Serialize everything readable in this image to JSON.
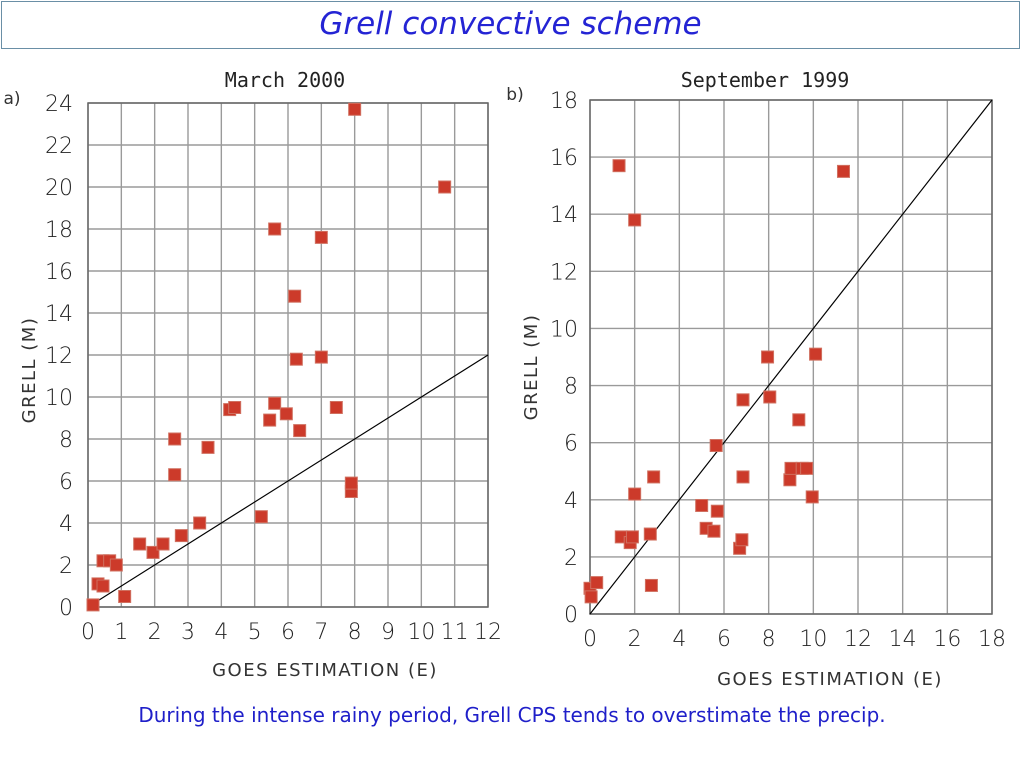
{
  "header": {
    "title": "Grell convective scheme"
  },
  "caption": "During the intense rainy period, Grell CPS tends to overstimate the precip.",
  "chart_data": [
    {
      "type": "scatter",
      "panel_label": "a)",
      "title": "March 2000",
      "xlabel": "GOES ESTIMATION (E)",
      "ylabel": "GRELL (M)",
      "xlim": [
        0,
        12
      ],
      "ylim": [
        0,
        24
      ],
      "xticks": [
        "0",
        "1",
        "2",
        "3",
        "4",
        "5",
        "6",
        "7",
        "8",
        "9",
        "10",
        "11",
        "12"
      ],
      "yticks": [
        "0",
        "2",
        "4",
        "6",
        "8",
        "10",
        "12",
        "14",
        "16",
        "18",
        "20",
        "22",
        "24"
      ],
      "grid": true,
      "reference_line": "1:1",
      "marker_color": "#cc3a2a",
      "points": [
        [
          0.15,
          0.1
        ],
        [
          0.3,
          1.1
        ],
        [
          0.45,
          2.2
        ],
        [
          0.45,
          1.0
        ],
        [
          0.65,
          2.2
        ],
        [
          0.85,
          2.0
        ],
        [
          1.1,
          0.5
        ],
        [
          1.55,
          3.0
        ],
        [
          1.95,
          2.6
        ],
        [
          2.25,
          3.0
        ],
        [
          2.6,
          8.0
        ],
        [
          2.6,
          6.3
        ],
        [
          2.8,
          3.4
        ],
        [
          3.35,
          4.0
        ],
        [
          3.6,
          7.6
        ],
        [
          4.25,
          9.4
        ],
        [
          4.4,
          9.5
        ],
        [
          5.2,
          4.3
        ],
        [
          5.45,
          8.9
        ],
        [
          5.6,
          9.7
        ],
        [
          5.6,
          18.0
        ],
        [
          5.95,
          9.2
        ],
        [
          6.2,
          14.8
        ],
        [
          6.25,
          11.8
        ],
        [
          6.35,
          8.4
        ],
        [
          7.0,
          17.6
        ],
        [
          7.0,
          11.9
        ],
        [
          7.45,
          9.5
        ],
        [
          7.9,
          5.5
        ],
        [
          7.9,
          5.9
        ],
        [
          8.0,
          23.7
        ],
        [
          10.7,
          20.0
        ]
      ]
    },
    {
      "type": "scatter",
      "panel_label": "b)",
      "title": "September 1999",
      "xlabel": "GOES ESTIMATION (E)",
      "ylabel": "GRELL (M)",
      "xlim": [
        0,
        18
      ],
      "ylim": [
        0,
        18
      ],
      "xticks": [
        "0",
        "2",
        "4",
        "6",
        "8",
        "10",
        "12",
        "14",
        "16",
        "18"
      ],
      "yticks": [
        "0",
        "2",
        "4",
        "6",
        "8",
        "10",
        "12",
        "14",
        "16",
        "18"
      ],
      "grid": true,
      "reference_line": "1:1",
      "marker_color": "#cc3a2a",
      "points": [
        [
          0.0,
          0.9
        ],
        [
          0.05,
          0.6
        ],
        [
          0.3,
          1.1
        ],
        [
          1.3,
          15.7
        ],
        [
          1.4,
          2.7
        ],
        [
          1.8,
          2.5
        ],
        [
          1.9,
          2.7
        ],
        [
          2.0,
          4.2
        ],
        [
          2.0,
          13.8
        ],
        [
          2.7,
          2.8
        ],
        [
          2.75,
          1.0
        ],
        [
          2.85,
          4.8
        ],
        [
          5.0,
          3.8
        ],
        [
          5.2,
          3.0
        ],
        [
          5.55,
          2.9
        ],
        [
          5.65,
          5.9
        ],
        [
          5.7,
          3.6
        ],
        [
          6.7,
          2.3
        ],
        [
          6.8,
          2.6
        ],
        [
          6.85,
          7.5
        ],
        [
          6.85,
          4.8
        ],
        [
          7.95,
          9.0
        ],
        [
          8.05,
          7.6
        ],
        [
          8.95,
          4.7
        ],
        [
          9.0,
          5.1
        ],
        [
          9.35,
          6.8
        ],
        [
          9.5,
          5.1
        ],
        [
          9.7,
          5.1
        ],
        [
          9.95,
          4.1
        ],
        [
          10.1,
          9.1
        ],
        [
          11.35,
          15.5
        ]
      ]
    }
  ]
}
